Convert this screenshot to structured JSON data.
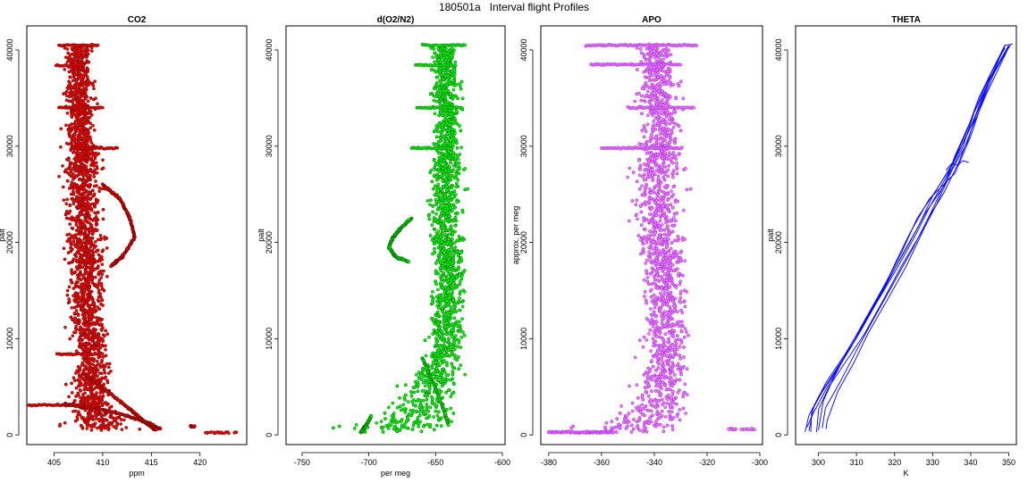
{
  "figure_title": "180501a   Interval flight Profiles",
  "chart_data": [
    {
      "type": "scatter",
      "title": "CO2",
      "xlabel": "ppm",
      "ylabel": "palt",
      "xlim": [
        402.2,
        424.8
      ],
      "ylim": [
        -1000,
        42500
      ],
      "xticks": [
        405,
        410,
        415,
        420
      ],
      "yticks": [
        0,
        10000,
        20000,
        30000,
        40000
      ],
      "colors": {
        "fill": "#ff0000",
        "stroke": "#5a0000"
      },
      "profile": {
        "alt": [
          500,
          1000,
          2000,
          3000,
          4000,
          6000,
          8000,
          10000,
          12000,
          15000,
          18000,
          20000,
          22000,
          25000,
          28000,
          30000,
          33000,
          36000,
          38500,
          40500
        ],
        "lo": [
          404.5,
          405.2,
          405.5,
          405.8,
          406.0,
          406.2,
          406.3,
          406.3,
          406.0,
          405.8,
          405.8,
          405.6,
          405.5,
          405.5,
          405.5,
          405.5,
          405.6,
          405.7,
          405.8,
          406.0
        ],
        "hi": [
          415.5,
          414.5,
          413.0,
          412.2,
          411.8,
          411.5,
          411.3,
          411.0,
          410.8,
          410.8,
          411.0,
          411.0,
          410.8,
          410.5,
          410.5,
          410.2,
          409.8,
          409.5,
          409.3,
          409.3
        ]
      },
      "segments": [
        {
          "x1": 402.4,
          "x2": 408.5,
          "y": 3100
        },
        {
          "x1": 405.5,
          "x2": 409.5,
          "y": 40500
        },
        {
          "x1": 405.2,
          "x2": 408.0,
          "y": 38400
        },
        {
          "x1": 405.3,
          "x2": 408.5,
          "y": 8400
        },
        {
          "x1": 407.0,
          "x2": 411.5,
          "y": 29800
        },
        {
          "x1": 405.5,
          "x2": 410.0,
          "y": 34000
        }
      ],
      "branches": [
        {
          "points": [
            [
              406.0,
              3200
            ],
            [
              409.0,
              2800
            ],
            [
              412.5,
              2000
            ],
            [
              414.5,
              1300
            ],
            [
              416.0,
              600
            ]
          ]
        },
        {
          "points": [
            [
              408.0,
              6500
            ],
            [
              410.5,
              4500
            ],
            [
              413.0,
              2500
            ],
            [
              414.5,
              1200
            ],
            [
              415.5,
              500
            ]
          ]
        },
        {
          "points": [
            [
              410.0,
              26000
            ],
            [
              411.8,
              24500
            ],
            [
              412.8,
              22500
            ],
            [
              413.3,
              20500
            ],
            [
              412.0,
              18500
            ],
            [
              410.8,
              17500
            ]
          ]
        }
      ],
      "tail": [
        {
          "x1": 419.0,
          "x2": 419.5,
          "y": 900
        },
        {
          "x1": 420.5,
          "x2": 424.3,
          "y": 250
        }
      ]
    },
    {
      "type": "scatter",
      "title": "d(O2/N2)",
      "xlabel": "per meg",
      "ylabel": "palt",
      "xlim": [
        -762,
        -598
      ],
      "ylim": [
        -1000,
        42500
      ],
      "xticks": [
        -750,
        -700,
        -650,
        -600
      ],
      "yticks": [
        0,
        10000,
        20000,
        30000,
        40000
      ],
      "colors": {
        "fill": "#00ff00",
        "stroke": "#006400"
      },
      "profile": {
        "alt": [
          300,
          1000,
          2000,
          3000,
          4000,
          5000,
          7000,
          9000,
          10000,
          12000,
          15000,
          18000,
          20000,
          22000,
          25000,
          28000,
          30000,
          33000,
          36000,
          38500,
          40500
        ],
        "lo": [
          -757,
          -720,
          -705,
          -700,
          -690,
          -680,
          -670,
          -662,
          -660,
          -658,
          -656,
          -656,
          -658,
          -660,
          -659,
          -658,
          -657,
          -656,
          -656,
          -655,
          -654
        ],
        "hi": [
          -620,
          -618,
          -620,
          -623,
          -625,
          -626,
          -626,
          -625,
          -625,
          -625,
          -624,
          -624,
          -625,
          -626,
          -626,
          -625,
          -625,
          -626,
          -628,
          -630,
          -631
        ]
      },
      "segments": [
        {
          "x1": -660,
          "x2": -628,
          "y": 40500
        },
        {
          "x1": -665,
          "x2": -635,
          "y": 38400
        },
        {
          "x1": -668,
          "x2": -640,
          "y": 29800
        },
        {
          "x1": -664,
          "x2": -630,
          "y": 34000
        }
      ],
      "branches": [
        {
          "points": [
            [
              -668,
              22500
            ],
            [
              -676,
              21500
            ],
            [
              -682,
              20500
            ],
            [
              -685,
              19500
            ],
            [
              -680,
              18500
            ],
            [
              -670,
              18000
            ]
          ]
        },
        {
          "points": [
            [
              -706,
              300
            ],
            [
              -702,
              1000
            ],
            [
              -698,
              2000
            ]
          ]
        },
        {
          "points": [
            [
              -660,
              8000
            ],
            [
              -652,
              5500
            ],
            [
              -645,
              3000
            ],
            [
              -640,
              1000
            ]
          ]
        }
      ],
      "tail": []
    },
    {
      "type": "scatter",
      "title": "APO",
      "xlabel": "",
      "ylabel": "approx. per meg",
      "xlim": [
        -383,
        -299
      ],
      "ylim": [
        -1000,
        42500
      ],
      "xticks": [
        -380,
        -360,
        -340,
        -320,
        -300
      ],
      "yticks": [
        0,
        10000,
        20000,
        30000,
        40000
      ],
      "colors": {
        "fill": "#ee82ee",
        "stroke": "#a020f0"
      },
      "profile": {
        "alt": [
          300,
          1000,
          2000,
          3000,
          4000,
          5000,
          7000,
          9000,
          10000,
          12000,
          15000,
          18000,
          20000,
          22000,
          25000,
          28000,
          30000,
          33000,
          36000,
          38500,
          40500
        ],
        "lo": [
          -378,
          -372,
          -362,
          -356,
          -352,
          -350,
          -348,
          -347,
          -347,
          -346,
          -346,
          -348,
          -349,
          -350,
          -351,
          -351,
          -350,
          -349,
          -348,
          -348,
          -347
        ],
        "hi": [
          -318,
          -319,
          -320,
          -322,
          -323,
          -324,
          -324,
          -325,
          -325,
          -325,
          -325,
          -325,
          -326,
          -326,
          -326,
          -326,
          -325,
          -326,
          -328,
          -330,
          -331
        ]
      },
      "segments": [
        {
          "x1": -366,
          "x2": -324,
          "y": 40500
        },
        {
          "x1": -364,
          "x2": -330,
          "y": 38500
        },
        {
          "x1": -360,
          "x2": -330,
          "y": 29800
        },
        {
          "x1": -350,
          "x2": -325,
          "y": 34000
        }
      ],
      "branches": [
        {
          "points": [
            [
              -380,
              300
            ],
            [
              -366,
              250
            ],
            [
              -355,
              300
            ]
          ]
        }
      ],
      "tail": [
        {
          "x1": -312,
          "x2": -302,
          "y": 600
        }
      ]
    },
    {
      "type": "line",
      "title": "THETA",
      "xlabel": "K",
      "ylabel": "palt",
      "xlim": [
        294,
        352
      ],
      "ylim": [
        -1000,
        42500
      ],
      "xticks": [
        300,
        310,
        320,
        330,
        340,
        350
      ],
      "yticks": [
        0,
        10000,
        20000,
        30000,
        40000
      ],
      "colors": {
        "line": "#0000ff"
      },
      "series": [
        {
          "points": [
            [
              298.0,
              300
            ],
            [
              298.5,
              2500
            ],
            [
              301,
              4500
            ],
            [
              306,
              7500
            ],
            [
              310,
              10000
            ],
            [
              315,
              13500
            ],
            [
              320,
              17000
            ],
            [
              325,
              20500
            ],
            [
              329,
              23500
            ],
            [
              333,
              26500
            ],
            [
              337,
              29500
            ],
            [
              341,
              33000
            ],
            [
              344,
              36000
            ],
            [
              347,
              38500
            ],
            [
              349,
              40500
            ],
            [
              351,
              40600
            ]
          ]
        },
        {
          "points": [
            [
              299.5,
              300
            ],
            [
              300,
              2700
            ],
            [
              303,
              5000
            ],
            [
              308,
              8000
            ],
            [
              312,
              10500
            ],
            [
              317,
              14000
            ],
            [
              322,
              17500
            ],
            [
              327,
              21000
            ],
            [
              330,
              23500
            ],
            [
              334,
              27000
            ],
            [
              338,
              30000
            ],
            [
              341,
              33500
            ],
            [
              344.5,
              36500
            ],
            [
              347.5,
              38800
            ],
            [
              350,
              40500
            ]
          ]
        },
        {
          "points": [
            [
              302.0,
              600
            ],
            [
              302.2,
              1500
            ],
            [
              305,
              4500
            ],
            [
              309,
              7500
            ],
            [
              313,
              10500
            ],
            [
              318,
              14000
            ],
            [
              323,
              17500
            ],
            [
              328,
              21500
            ],
            [
              331,
              24000
            ],
            [
              335,
              27500
            ],
            [
              339,
              30500
            ],
            [
              342,
              34000
            ],
            [
              345,
              37000
            ],
            [
              348,
              39000
            ],
            [
              350,
              40400
            ]
          ]
        },
        {
          "points": [
            [
              297.5,
              400
            ],
            [
              299,
              3000
            ],
            [
              302,
              5500
            ],
            [
              307,
              8500
            ],
            [
              311,
              11000
            ],
            [
              316,
              14500
            ],
            [
              321,
              18500
            ],
            [
              324,
              21000
            ],
            [
              329,
              24500
            ],
            [
              336,
              27200
            ],
            [
              340,
              31000
            ],
            [
              343,
              34500
            ],
            [
              346,
              37500
            ],
            [
              349.5,
              40000
            ]
          ]
        },
        {
          "points": [
            [
              296.5,
              300
            ],
            [
              297.5,
              2000
            ],
            [
              300,
              4000
            ],
            [
              304,
              6500
            ],
            [
              309,
              9500
            ],
            [
              314,
              13000
            ],
            [
              319,
              16500
            ],
            [
              324,
              20000
            ],
            [
              328,
              23000
            ],
            [
              333,
              26000
            ],
            [
              336,
              29000
            ],
            [
              340,
              32500
            ],
            [
              343,
              35500
            ],
            [
              346,
              38000
            ],
            [
              349,
              40200
            ]
          ]
        },
        {
          "points": [
            [
              300,
              500
            ],
            [
              301,
              3500
            ],
            [
              304,
              6000
            ],
            [
              308,
              9000
            ],
            [
              313,
              12500
            ],
            [
              318,
              16000
            ],
            [
              322,
              19000
            ],
            [
              326,
              22500
            ],
            [
              331,
              25500
            ],
            [
              335,
              28000
            ],
            [
              339,
              31500
            ],
            [
              342,
              35000
            ],
            [
              346,
              38200
            ],
            [
              349,
              40500
            ]
          ]
        },
        {
          "points": [
            [
              297.0,
              800
            ],
            [
              298.5,
              2200
            ],
            [
              302,
              4800
            ],
            [
              306.5,
              7800
            ],
            [
              311,
              10800
            ],
            [
              316.5,
              14800
            ],
            [
              321.5,
              18200
            ],
            [
              326.5,
              21800
            ],
            [
              330,
              24800
            ],
            [
              334.5,
              27800
            ],
            [
              338.5,
              30800
            ],
            [
              342.5,
              34200
            ],
            [
              345.5,
              37200
            ],
            [
              348.5,
              39500
            ],
            [
              350.5,
              40500
            ]
          ]
        },
        {
          "points": [
            [
              301,
              700
            ],
            [
              302,
              2800
            ],
            [
              305.5,
              5500
            ],
            [
              310,
              8800
            ],
            [
              314.5,
              12000
            ],
            [
              319.5,
              15500
            ],
            [
              324.5,
              19200
            ],
            [
              329,
              22500
            ],
            [
              333,
              25200
            ],
            [
              337,
              28500
            ],
            [
              340.5,
              32000
            ],
            [
              344,
              35200
            ],
            [
              347,
              38000
            ],
            [
              350,
              40300
            ]
          ]
        }
      ],
      "wiggle": [
        [
          333.5,
          27500
        ],
        [
          335,
          28200
        ],
        [
          336.5,
          28000
        ],
        [
          338,
          28500
        ],
        [
          339.5,
          28300
        ]
      ]
    }
  ]
}
